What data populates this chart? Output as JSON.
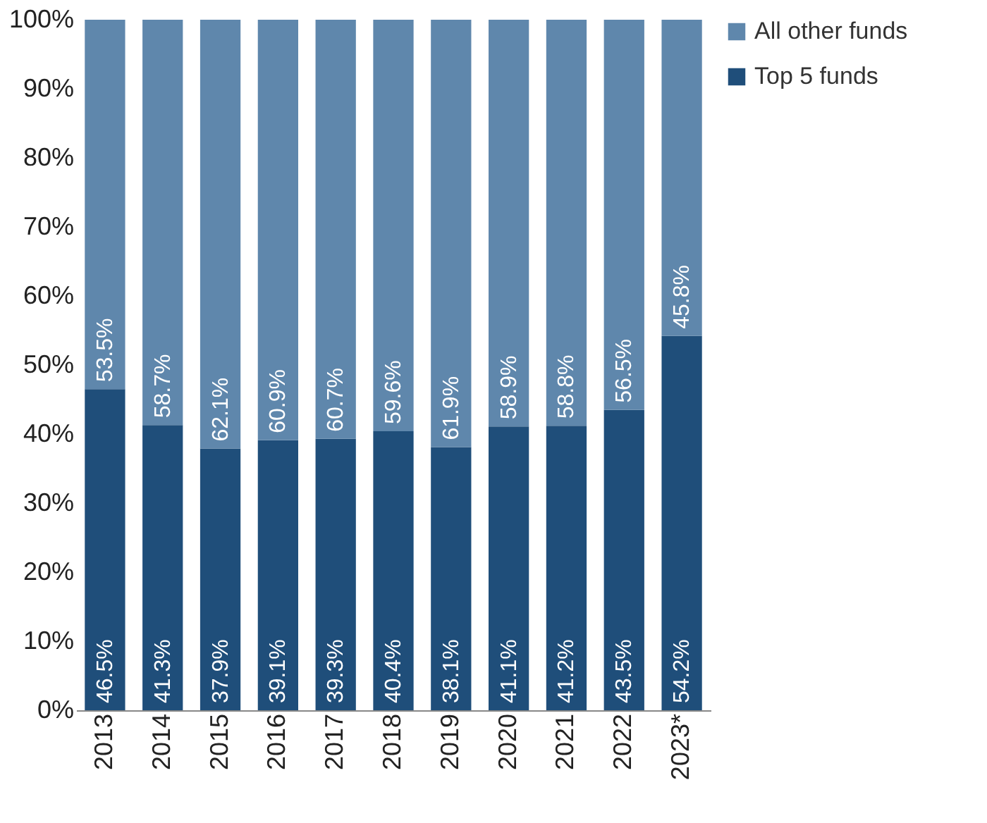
{
  "chart_data": {
    "type": "bar",
    "stacked": true,
    "categories": [
      "2013",
      "2014",
      "2015",
      "2016",
      "2017",
      "2018",
      "2019",
      "2020",
      "2021",
      "2022",
      "2023*"
    ],
    "series": [
      {
        "name": "Top 5 funds",
        "color": "#1f4e7a",
        "values": [
          46.5,
          41.3,
          37.9,
          39.1,
          39.3,
          40.4,
          38.1,
          41.1,
          41.2,
          43.5,
          54.2
        ],
        "value_labels": [
          "46.5%",
          "41.3%",
          "37.9%",
          "39.1%",
          "39.3%",
          "40.4%",
          "38.1%",
          "41.1%",
          "41.2%",
          "43.5%",
          "54.2%"
        ]
      },
      {
        "name": "All other funds",
        "color": "#5f87ac",
        "values": [
          53.5,
          58.7,
          62.1,
          60.9,
          60.7,
          59.6,
          61.9,
          58.9,
          58.8,
          56.5,
          45.8
        ],
        "value_labels": [
          "53.5%",
          "58.7%",
          "62.1%",
          "60.9%",
          "60.7%",
          "59.6%",
          "61.9%",
          "58.9%",
          "58.8%",
          "56.5%",
          "45.8%"
        ]
      }
    ],
    "ylim": [
      0,
      100
    ],
    "yticks": [
      {
        "value": 0,
        "label": "0%"
      },
      {
        "value": 10,
        "label": "10%"
      },
      {
        "value": 20,
        "label": "20%"
      },
      {
        "value": 30,
        "label": "30%"
      },
      {
        "value": 40,
        "label": "40%"
      },
      {
        "value": 50,
        "label": "50%"
      },
      {
        "value": 60,
        "label": "60%"
      },
      {
        "value": 70,
        "label": "70%"
      },
      {
        "value": 80,
        "label": "80%"
      },
      {
        "value": 90,
        "label": "90%"
      },
      {
        "value": 100,
        "label": "100%"
      }
    ],
    "grid": false,
    "legend": "top right"
  }
}
